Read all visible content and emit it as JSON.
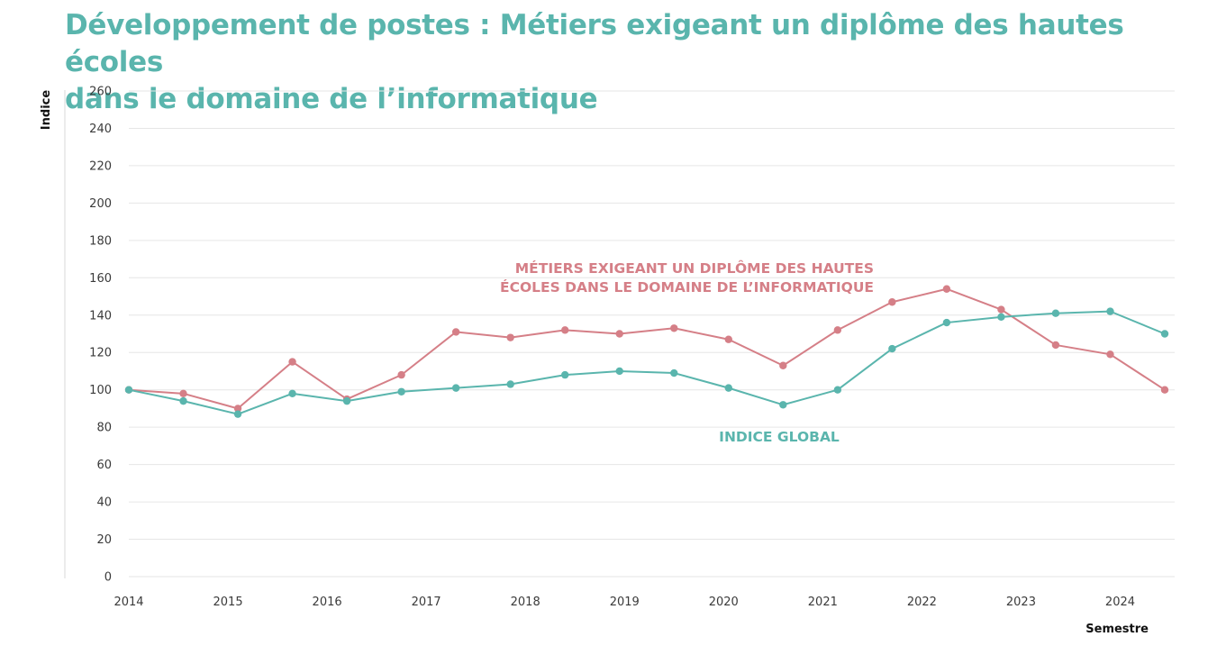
{
  "colors": {
    "global": "#5ab5ad",
    "it": "#d57f87",
    "grid": "#e6e6e6"
  },
  "chart_data": {
    "type": "line",
    "title_lines": [
      "Développement de postes : Métiers exigeant un diplôme des hautes écoles",
      "dans le domaine de l’informatique"
    ],
    "xlabel": "Semestre",
    "ylabel": "Indice",
    "ylim": [
      0,
      260
    ],
    "yticks": [
      "0",
      "20",
      "40",
      "60",
      "80",
      "100",
      "120",
      "140",
      "160",
      "180",
      "200",
      "220",
      "240",
      "260"
    ],
    "xticks": [
      "2014",
      "2015",
      "2016",
      "2017",
      "2018",
      "2019",
      "2020",
      "2021",
      "2022",
      "2023",
      "2024"
    ],
    "x": [
      2014.0,
      2014.55,
      2015.1,
      2015.65,
      2016.2,
      2016.75,
      2017.3,
      2017.85,
      2018.4,
      2018.95,
      2019.5,
      2020.05,
      2020.6,
      2021.15,
      2021.7,
      2022.25,
      2022.8,
      2023.35,
      2023.9,
      2024.45
    ],
    "series": [
      {
        "name": "Métiers exigeant un diplôme des hautes écoles dans le domaine de l’informatique",
        "label_lines": [
          "MÉTIERS EXIGEANT UN DIPLÔME DES HAUTES",
          "ÉCOLES DANS LE DOMAINE DE L’INFORMATIQUE"
        ],
        "values": [
          100,
          98,
          90,
          115,
          95,
          108,
          131,
          128,
          132,
          130,
          133,
          127,
          113,
          132,
          147,
          154,
          143,
          124,
          119,
          100
        ]
      },
      {
        "name": "Indice global",
        "label_lines": [
          "INDICE GLOBAL"
        ],
        "values": [
          100,
          94,
          87,
          98,
          94,
          99,
          101,
          103,
          108,
          110,
          109,
          101,
          92,
          100,
          122,
          136,
          139,
          141,
          142,
          130
        ]
      }
    ]
  }
}
